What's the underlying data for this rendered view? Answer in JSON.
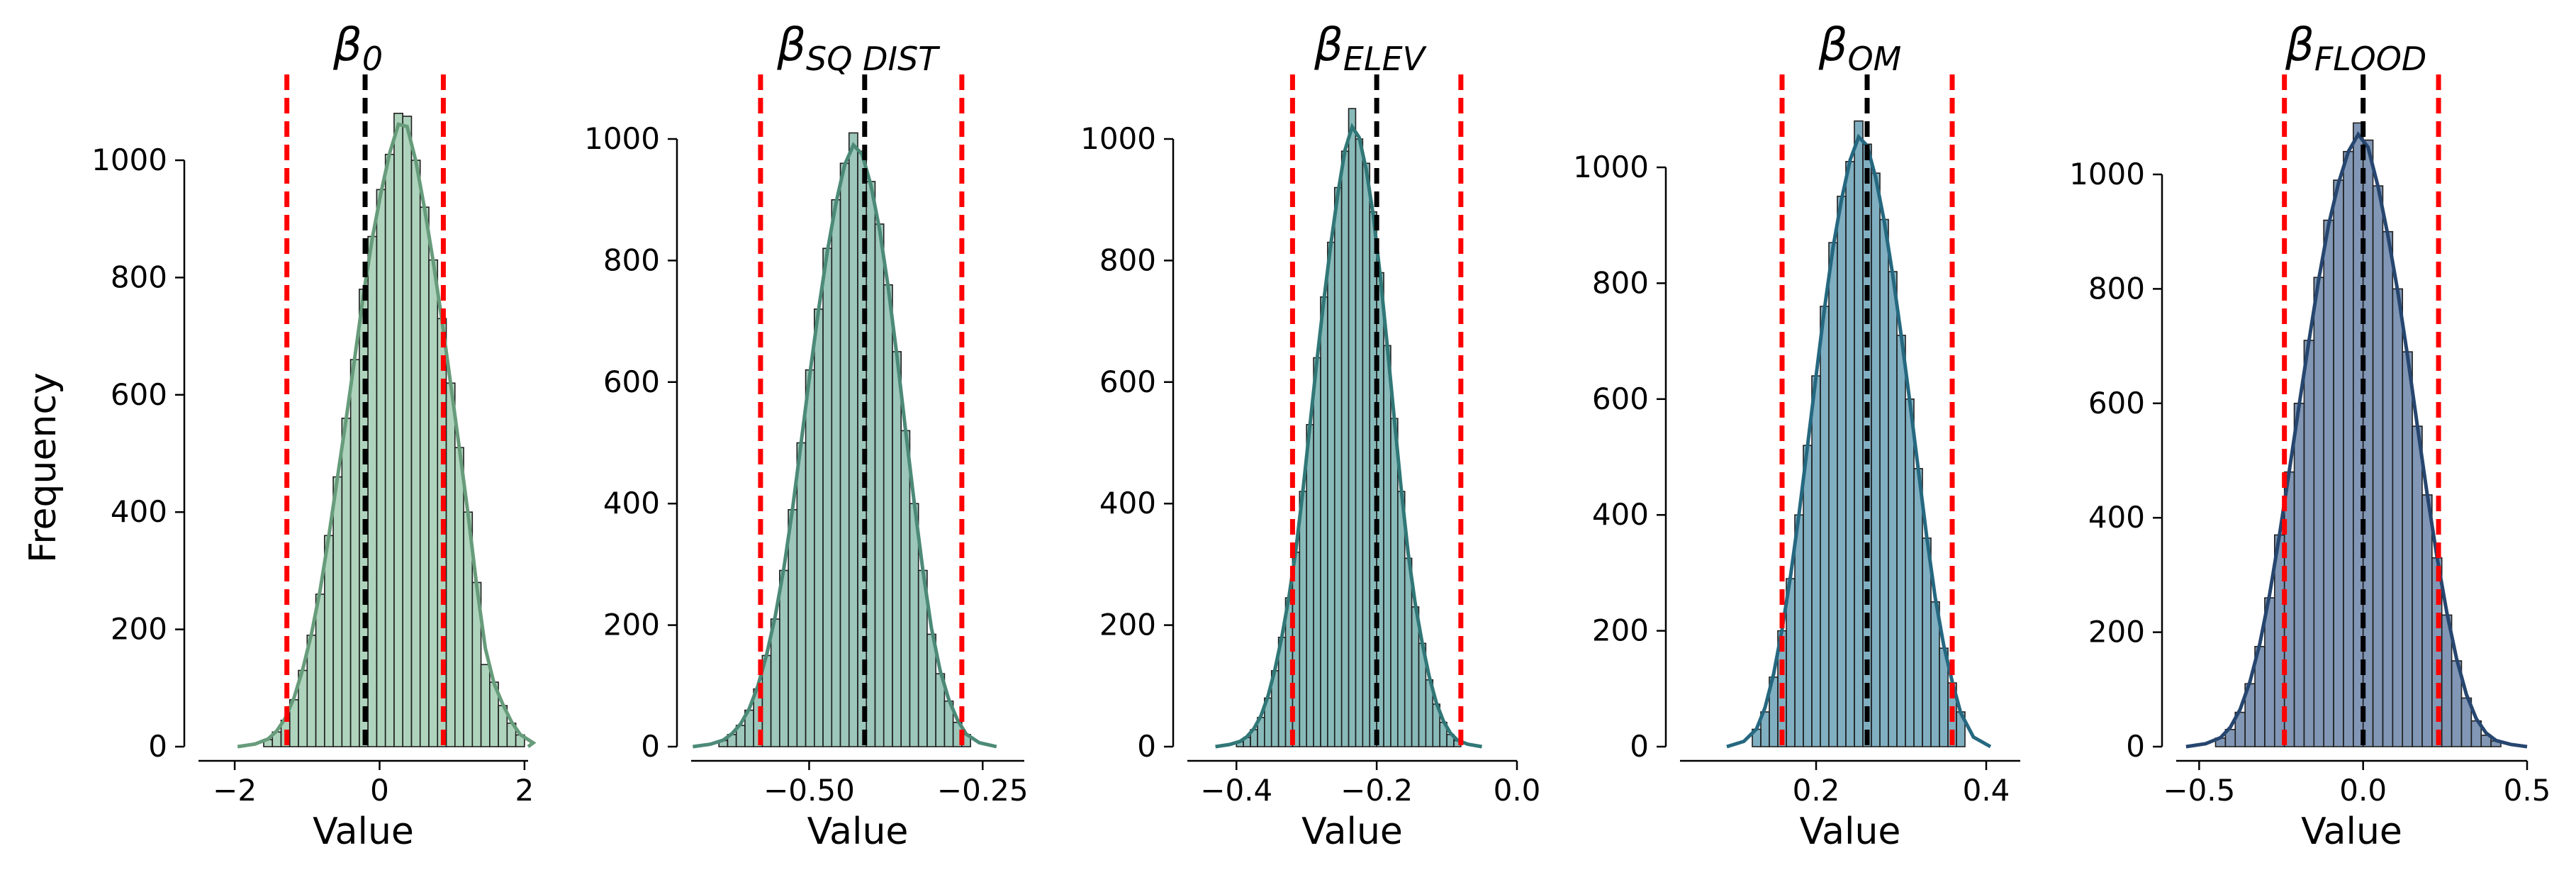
{
  "chart_data": [
    {
      "type": "bar",
      "title": "β",
      "title_sub": "0",
      "xlabel": "Value",
      "ylabel": "Frequency",
      "color": "#79b791",
      "xlim": [
        -2.5,
        2.05
      ],
      "ylim": [
        0,
        1000
      ],
      "xticks": [
        -2,
        0,
        2
      ],
      "xtick_labels": [
        "−2",
        "0",
        "2"
      ],
      "yticks": [
        0,
        200,
        400,
        600,
        800,
        1000
      ],
      "ytick_labels": [
        "0",
        "200",
        "400",
        "600",
        "800",
        "1000"
      ],
      "bins": {
        "start": -1.6,
        "width": 0.12,
        "counts": [
          12,
          25,
          45,
          80,
          130,
          190,
          260,
          360,
          460,
          560,
          660,
          780,
          870,
          950,
          1010,
          1080,
          1075,
          1000,
          920,
          830,
          730,
          620,
          510,
          400,
          280,
          140,
          110,
          70,
          40,
          20
        ]
      },
      "mean": -0.2,
      "ci": [
        -1.28,
        0.88
      ]
    },
    {
      "type": "bar",
      "title": "β",
      "title_sub": "SQ DIST",
      "xlabel": "Value",
      "ylabel": "",
      "color": "#5aa28c",
      "xlim": [
        -0.67,
        -0.19
      ],
      "ylim": [
        0,
        1000
      ],
      "xticks": [
        -0.5,
        -0.25
      ],
      "xtick_labels": [
        "−0.50",
        "−0.25"
      ],
      "yticks": [
        0,
        200,
        400,
        600,
        800,
        1000
      ],
      "ytick_labels": [
        "0",
        "200",
        "400",
        "600",
        "800",
        "1000"
      ],
      "bins": {
        "start": -0.63,
        "width": 0.0125,
        "counts": [
          10,
          20,
          35,
          60,
          95,
          150,
          210,
          290,
          390,
          500,
          620,
          720,
          820,
          900,
          960,
          1010,
          980,
          930,
          860,
          760,
          650,
          520,
          400,
          290,
          185,
          120,
          75,
          40,
          20
        ]
      },
      "mean": -0.42,
      "ci": [
        -0.57,
        -0.28
      ]
    },
    {
      "type": "bar",
      "title": "β",
      "title_sub": "ELEV",
      "xlabel": "Value",
      "ylabel": "",
      "color": "#3a8c8c",
      "xlim": [
        -0.47,
        0.0
      ],
      "ylim": [
        0,
        1000
      ],
      "xticks": [
        -0.4,
        -0.2,
        0.0
      ],
      "xtick_labels": [
        "−0.4",
        "−0.2",
        "0.0"
      ],
      "yticks": [
        0,
        200,
        400,
        600,
        800,
        1000
      ],
      "ytick_labels": [
        "0",
        "200",
        "400",
        "600",
        "800",
        "1000"
      ],
      "bins": {
        "start": -0.4,
        "width": 0.01,
        "counts": [
          8,
          15,
          28,
          48,
          80,
          125,
          180,
          245,
          320,
          420,
          530,
          640,
          740,
          830,
          920,
          980,
          1050,
          1000,
          960,
          880,
          780,
          660,
          540,
          420,
          310,
          230,
          170,
          110,
          70,
          40,
          20,
          10
        ]
      },
      "mean": -0.2,
      "ci": [
        -0.32,
        -0.08
      ]
    },
    {
      "type": "bar",
      "title": "β",
      "title_sub": "OM",
      "xlabel": "Value",
      "ylabel": "",
      "color": "#2c7a97",
      "xlim": [
        0.04,
        0.44
      ],
      "ylim": [
        0,
        1000
      ],
      "xticks": [
        0.2,
        0.4
      ],
      "xtick_labels": [
        "0.2",
        "0.4"
      ],
      "yticks": [
        0,
        200,
        400,
        600,
        800,
        1000
      ],
      "ytick_labels": [
        "0",
        "200",
        "400",
        "600",
        "800",
        "1000"
      ],
      "bins": {
        "start": 0.125,
        "width": 0.01,
        "counts": [
          30,
          60,
          120,
          200,
          290,
          400,
          520,
          640,
          760,
          870,
          950,
          1010,
          1080,
          1040,
          990,
          910,
          820,
          710,
          600,
          480,
          360,
          250,
          170,
          110,
          60
        ]
      },
      "mean": 0.26,
      "ci": [
        0.16,
        0.36
      ]
    },
    {
      "type": "bar",
      "title": "β",
      "title_sub": "FLOOD",
      "xlabel": "Value",
      "ylabel": "",
      "color": "#2d5283",
      "xlim": [
        -0.57,
        0.5
      ],
      "ylim": [
        0,
        1000
      ],
      "xticks": [
        -0.5,
        0.0,
        0.5
      ],
      "xtick_labels": [
        "−0.5",
        "0.0",
        "0.5"
      ],
      "yticks": [
        0,
        200,
        400,
        600,
        800,
        1000
      ],
      "ytick_labels": [
        "0",
        "200",
        "400",
        "600",
        "800",
        "1000"
      ],
      "bins": {
        "start": -0.45,
        "width": 0.03,
        "counts": [
          15,
          30,
          60,
          110,
          175,
          260,
          370,
          480,
          600,
          710,
          820,
          920,
          990,
          1040,
          1090,
          1060,
          980,
          900,
          800,
          690,
          560,
          440,
          330,
          230,
          150,
          85,
          45,
          20,
          10
        ]
      },
      "mean": 0.0,
      "ci": [
        -0.24,
        0.23
      ]
    }
  ]
}
